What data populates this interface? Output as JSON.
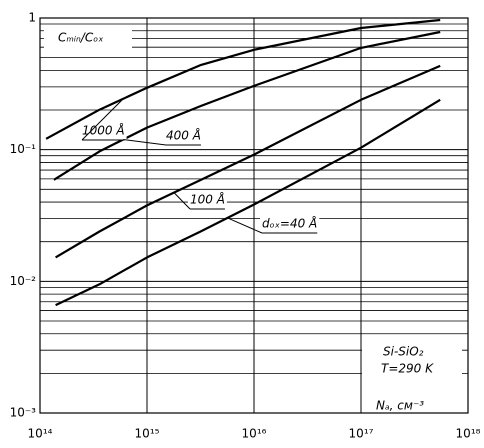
{
  "chart_data": {
    "type": "line",
    "y_label": "Cₘᵢₙ/Cₒₓ",
    "x_label": "Nₐ, см⁻³",
    "annotations": [
      "Si-SiO₂",
      "T=290 K"
    ],
    "log_x": true,
    "log_y": true,
    "grid": true,
    "xlim": [
      100000000000000.0,
      1e+18
    ],
    "ylim": [
      0.001,
      1
    ],
    "xticks": [
      {
        "value": 100000000000000.0,
        "label": "10¹⁴"
      },
      {
        "value": 1000000000000000.0,
        "label": "10¹⁵"
      },
      {
        "value": 1e+16,
        "label": "10¹⁶"
      },
      {
        "value": 1e+17,
        "label": "10¹⁷"
      },
      {
        "value": 1e+18,
        "label": "10¹⁸"
      }
    ],
    "yticks": [
      {
        "value": 0.001,
        "label": "10⁻³"
      },
      {
        "value": 0.01,
        "label": "10⁻²"
      },
      {
        "value": 0.1,
        "label": "10⁻¹"
      },
      1
    ],
    "yticks_minor": [
      0.002,
      0.003,
      0.004,
      0.005,
      0.006,
      0.007,
      0.008,
      0.009,
      0.02,
      0.03,
      0.04,
      0.05,
      0.06,
      0.07,
      0.08,
      0.09,
      0.2,
      0.3,
      0.4,
      0.5,
      0.6,
      0.7,
      0.8,
      0.9
    ],
    "series": [
      {
        "name": "1000 Å",
        "color": "#000000",
        "x": [
          114000000000000.0,
          360000000000000.0,
          1000000000000000.0,
          3200000000000000.0,
          1e+16,
          1e+17,
          5.5e+17
        ],
        "values": [
          0.121,
          0.201,
          0.295,
          0.44,
          0.573,
          0.84,
          0.966
        ]
      },
      {
        "name": "400 Å",
        "color": "#000000",
        "x": [
          135000000000000.0,
          360000000000000.0,
          1000000000000000.0,
          3200000000000000.0,
          1e+16,
          1e+17,
          5.5e+17
        ],
        "values": [
          0.059,
          0.097,
          0.147,
          0.215,
          0.305,
          0.593,
          0.783
        ]
      },
      {
        "name": "100 Å",
        "color": "#000000",
        "x": [
          140000000000000.0,
          360000000000000.0,
          1000000000000000.0,
          3200000000000000.0,
          1e+16,
          1e+17,
          5.5e+17
        ],
        "values": [
          0.0152,
          0.0239,
          0.0377,
          0.059,
          0.0917,
          0.239,
          0.433
        ]
      },
      {
        "name": "dₒₓ=40 Å",
        "color": "#000000",
        "x": [
          140000000000000.0,
          360000000000000.0,
          1000000000000000.0,
          3200000000000000.0,
          1e+16,
          1e+17,
          5.5e+17
        ],
        "values": [
          0.0066,
          0.0095,
          0.0152,
          0.024,
          0.0383,
          0.1035,
          0.239
        ]
      }
    ]
  }
}
